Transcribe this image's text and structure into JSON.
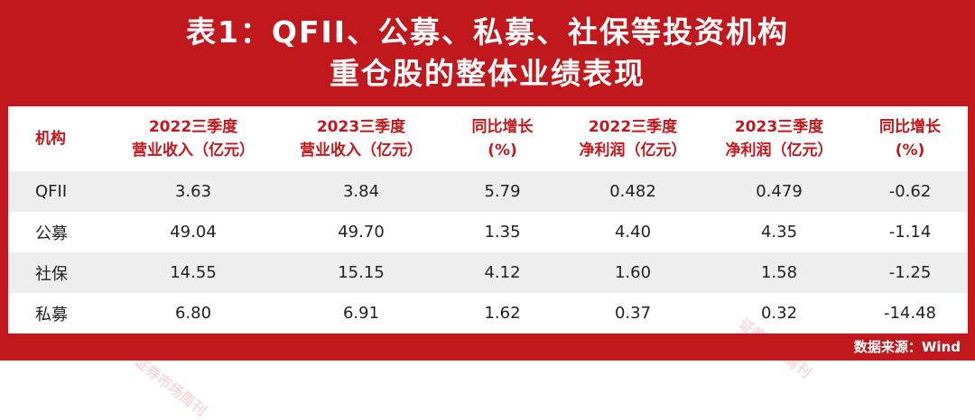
{
  "title": {
    "line1": "表1：QFII、公募、私募、社保等投资机构",
    "line2": "重仓股的整体业绩表现"
  },
  "table": {
    "headers": [
      {
        "line1": "机构",
        "line2": ""
      },
      {
        "line1": "2022三季度",
        "line2": "营业收入（亿元）"
      },
      {
        "line1": "2023三季度",
        "line2": "营业收入（亿元）"
      },
      {
        "line1": "同比增长",
        "line2": "(%)"
      },
      {
        "line1": "2022三季度",
        "line2": "净利润（亿元）"
      },
      {
        "line1": "2023三季度",
        "line2": "净利润（亿元）"
      },
      {
        "line1": "同比增长",
        "line2": "(%)"
      }
    ],
    "rows": [
      [
        "QFII",
        "3.63",
        "3.84",
        "5.79",
        "0.482",
        "0.479",
        "-0.62"
      ],
      [
        "公募",
        "49.04",
        "49.70",
        "1.35",
        "4.40",
        "4.35",
        "-1.14"
      ],
      [
        "社保",
        "14.55",
        "15.15",
        "4.12",
        "1.60",
        "1.58",
        "-1.25"
      ],
      [
        "私募",
        "6.80",
        "6.91",
        "1.62",
        "0.37",
        "0.32",
        "-14.48"
      ]
    ]
  },
  "source": "数据来源：Wind",
  "watermark": "证券市场周刊",
  "colors": {
    "brand_red": "#c0181c",
    "row_shade": "#eeeeee"
  }
}
